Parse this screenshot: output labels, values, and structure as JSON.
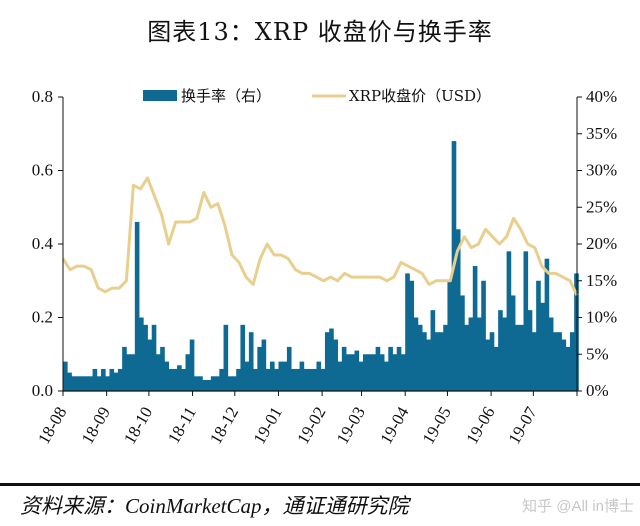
{
  "title": "图表13：XRP 收盘价与换手率",
  "source": "资料来源：CoinMarketCap，通证通研究院",
  "watermark": "知乎 @All in博士",
  "colors": {
    "bar": "#0e6a92",
    "line": "#e8cf8e"
  },
  "chart_data": {
    "type": "bar+line",
    "title": "图表13：XRP 收盘价与换手率",
    "legend": [
      "换手率（右）",
      "XRP收盘价（USD）"
    ],
    "legend_position": "top-center",
    "x_ticks": [
      "18-08",
      "18-09",
      "18-10",
      "18-11",
      "18-12",
      "19-01",
      "19-02",
      "19-03",
      "19-04",
      "19-05",
      "19-06",
      "19-07"
    ],
    "x_tick_days": [
      0,
      31,
      61,
      92,
      122,
      153,
      184,
      212,
      243,
      273,
      304,
      334
    ],
    "x_range_days": [
      0,
      365
    ],
    "y_left": {
      "ticks": [
        "0.0",
        "0.2",
        "0.4",
        "0.6",
        "0.8"
      ],
      "ylim": [
        0,
        0.8
      ]
    },
    "y_right": {
      "ticks": [
        "0%",
        "5%",
        "10%",
        "15%",
        "20%",
        "25%",
        "30%",
        "35%",
        "40%"
      ],
      "ylim": [
        0,
        40
      ]
    },
    "series": [
      {
        "name": "XRP收盘价（USD）",
        "axis": "left",
        "kind": "line",
        "day_step": 5,
        "values": [
          0.36,
          0.33,
          0.34,
          0.34,
          0.33,
          0.28,
          0.27,
          0.28,
          0.28,
          0.3,
          0.56,
          0.55,
          0.58,
          0.53,
          0.48,
          0.4,
          0.46,
          0.46,
          0.46,
          0.47,
          0.54,
          0.5,
          0.51,
          0.45,
          0.37,
          0.35,
          0.31,
          0.29,
          0.36,
          0.4,
          0.37,
          0.37,
          0.36,
          0.33,
          0.32,
          0.32,
          0.31,
          0.3,
          0.31,
          0.3,
          0.32,
          0.31,
          0.31,
          0.31,
          0.31,
          0.31,
          0.3,
          0.31,
          0.35,
          0.34,
          0.33,
          0.32,
          0.29,
          0.3,
          0.3,
          0.3,
          0.38,
          0.42,
          0.39,
          0.4,
          0.44,
          0.42,
          0.4,
          0.42,
          0.47,
          0.44,
          0.4,
          0.39,
          0.34,
          0.32,
          0.32,
          0.31,
          0.3,
          0.26
        ]
      },
      {
        "name": "换手率（右）",
        "axis": "right",
        "kind": "bar",
        "unit": "%",
        "day_step": 3,
        "values": [
          4,
          2.5,
          2,
          2,
          2,
          2,
          2,
          3,
          2,
          3,
          2,
          3,
          2.5,
          3,
          6,
          5,
          5,
          23,
          10,
          9,
          7,
          9,
          5,
          6,
          4,
          3,
          3,
          3.5,
          3,
          5,
          7,
          2,
          2,
          1.5,
          1.5,
          2,
          2,
          3,
          9,
          2,
          2,
          3,
          9,
          4,
          8,
          3,
          6,
          7,
          3,
          4,
          3,
          4,
          4,
          6,
          3,
          3,
          4,
          3,
          3,
          3,
          4,
          3,
          8,
          8.5,
          7,
          4,
          6,
          5,
          5,
          5.5,
          4,
          5,
          5,
          5,
          6,
          5,
          4,
          6,
          5,
          6,
          5,
          16,
          15,
          10,
          9,
          8,
          7,
          11,
          8,
          8,
          9,
          15,
          34,
          22,
          13,
          9,
          10,
          17,
          10,
          15,
          7,
          8,
          6,
          11,
          10,
          19,
          13,
          9,
          9,
          19,
          11,
          8,
          15,
          12,
          18,
          10,
          8,
          8,
          7,
          6,
          8,
          16
        ]
      }
    ]
  }
}
